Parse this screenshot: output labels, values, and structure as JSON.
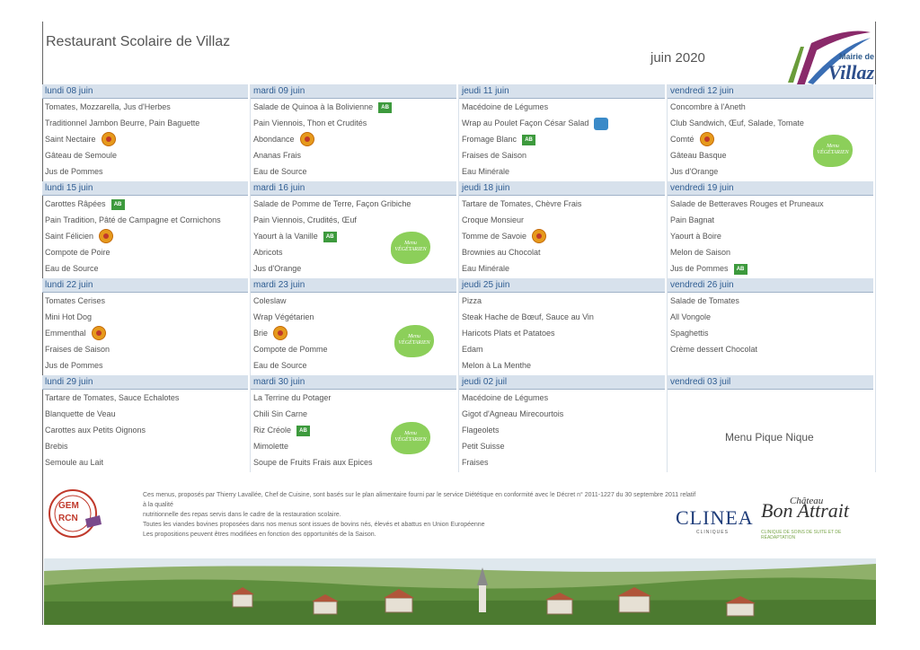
{
  "header": {
    "title": "Restaurant Scolaire de Villaz",
    "month": "juin 2020",
    "logo_line1": "Mairie de",
    "logo_line2": "Villaz"
  },
  "weeks": [
    {
      "days": [
        {
          "label": "lundi 08 juin",
          "items": [
            {
              "t": "Tomates, Mozzarella, Jus d'Herbes"
            },
            {
              "t": "Traditionnel Jambon Beurre, Pain Baguette"
            },
            {
              "t": "Saint Nectaire",
              "b": "aop"
            },
            {
              "t": "Gâteau de Semoule"
            },
            {
              "t": "Jus de Pommes"
            }
          ]
        },
        {
          "label": "mardi 09 juin",
          "items": [
            {
              "t": "Salade de Quinoa à la Bolivienne",
              "b": "ab"
            },
            {
              "t": "Pain Viennois, Thon et Crudités"
            },
            {
              "t": "Abondance",
              "b": "aop"
            },
            {
              "t": "Ananas Frais"
            },
            {
              "t": "Eau de Source"
            }
          ]
        },
        {
          "label": "jeudi 11 juin",
          "items": [
            {
              "t": "Macédoine de Légumes"
            },
            {
              "t": "Wrap au Poulet Façon César Salad",
              "b": "bleu"
            },
            {
              "t": "Fromage Blanc",
              "b": "ab"
            },
            {
              "t": "Fraises de Saison"
            },
            {
              "t": "Eau Minérale"
            }
          ]
        },
        {
          "label": "vendredi 12 juin",
          "items": [
            {
              "t": "Concombre à l'Aneth"
            },
            {
              "t": "Club Sandwich, Œuf, Salade, Tomate"
            },
            {
              "t": "Comté",
              "b": "aop"
            },
            {
              "t": "Gâteau Basque"
            },
            {
              "t": "Jus d'Orange"
            }
          ]
        }
      ]
    },
    {
      "days": [
        {
          "label": "lundi 15 juin",
          "items": [
            {
              "t": "Carottes Râpées",
              "b": "ab"
            },
            {
              "t": "Pain Tradition, Pâté de Campagne et Cornichons"
            },
            {
              "t": "Saint Félicien",
              "b": "aop"
            },
            {
              "t": "Compote de Poire"
            },
            {
              "t": "Eau de Source"
            }
          ]
        },
        {
          "label": "mardi 16 juin",
          "items": [
            {
              "t": "Salade de Pomme de Terre, Façon Gribiche"
            },
            {
              "t": "Pain Viennois, Crudités, Œuf"
            },
            {
              "t": "Yaourt à la Vanille",
              "b": "ab"
            },
            {
              "t": "Abricots"
            },
            {
              "t": "Jus d'Orange"
            }
          ]
        },
        {
          "label": "jeudi 18 juin",
          "items": [
            {
              "t": "Tartare de Tomates, Chèvre Frais"
            },
            {
              "t": "Croque Monsieur"
            },
            {
              "t": "Tomme de Savoie",
              "b": "aop"
            },
            {
              "t": "Brownies au Chocolat"
            },
            {
              "t": "Eau Minérale"
            }
          ]
        },
        {
          "label": "vendredi 19 juin",
          "items": [
            {
              "t": "Salade de Betteraves Rouges et Pruneaux"
            },
            {
              "t": "Pain Bagnat"
            },
            {
              "t": "Yaourt à Boire"
            },
            {
              "t": "Melon de Saison"
            },
            {
              "t": "Jus de Pommes",
              "b": "ab"
            }
          ]
        }
      ]
    },
    {
      "days": [
        {
          "label": "lundi 22 juin",
          "items": [
            {
              "t": "Tomates Cerises"
            },
            {
              "t": "Mini Hot Dog"
            },
            {
              "t": "Emmenthal",
              "b": "aop"
            },
            {
              "t": "Fraises de Saison"
            },
            {
              "t": "Jus de Pommes"
            }
          ]
        },
        {
          "label": "mardi 23 juin",
          "items": [
            {
              "t": "Coleslaw"
            },
            {
              "t": "Wrap Végétarien"
            },
            {
              "t": "Brie",
              "b": "aop"
            },
            {
              "t": "Compote de Pomme"
            },
            {
              "t": "Eau de Source"
            }
          ]
        },
        {
          "label": "jeudi 25 juin",
          "items": [
            {
              "t": "Pizza"
            },
            {
              "t": "Steak Hache de Bœuf, Sauce au Vin"
            },
            {
              "t": "Haricots Plats et Patatoes"
            },
            {
              "t": "Edam"
            },
            {
              "t": "Melon à La Menthe"
            }
          ]
        },
        {
          "label": "vendredi 26 juin",
          "items": [
            {
              "t": "Salade de Tomates"
            },
            {
              "t": "All Vongole"
            },
            {
              "t": "Spaghettis"
            },
            {
              "t": "Crème dessert Chocolat"
            },
            {
              "t": ""
            }
          ]
        }
      ]
    },
    {
      "days": [
        {
          "label": "lundi 29 juin",
          "items": [
            {
              "t": "Tartare de Tomates, Sauce Echalotes"
            },
            {
              "t": "Blanquette de Veau"
            },
            {
              "t": "Carottes aux Petits Oignons"
            },
            {
              "t": "Brebis"
            },
            {
              "t": "Semoule au Lait"
            }
          ]
        },
        {
          "label": "mardi 30 juin",
          "items": [
            {
              "t": "La Terrine du Potager"
            },
            {
              "t": "Chili Sin Carne"
            },
            {
              "t": "Riz Créole",
              "b": "ab"
            },
            {
              "t": "Mimolette"
            },
            {
              "t": "Soupe de Fruits Frais aux Epices"
            }
          ]
        },
        {
          "label": "jeudi 02 juil",
          "items": [
            {
              "t": "Macédoine de Légumes"
            },
            {
              "t": "Gigot d'Agneau Mirecourtois"
            },
            {
              "t": "Flageolets"
            },
            {
              "t": "Petit Suisse"
            },
            {
              "t": "Fraises"
            }
          ]
        },
        {
          "label": "vendredi 03 juil",
          "items": []
        }
      ]
    }
  ],
  "badges": {
    "ab": "AB",
    "veg_line1": "Menu",
    "veg_line2": "VÉGÉTARIEN"
  },
  "pique_nique": "Menu Pique Nique",
  "footer": {
    "line1": "Ces menus, proposés par Thierry Lavallée, Chef de Cuisine, sont basés sur le plan alimentaire fourni par le service Diététique en conformité avec le Décret n° 2011-1227 du 30 septembre 2011 relatif à la qualité",
    "line2": "nutritionnelle des repas servis dans le cadre de la restauration scolaire.",
    "line3": "Toutes les viandes bovines proposées dans nos menus sont issues de bovins nés, élevés et abattus en Union Européenne",
    "line4": "Les propositions peuvent êtres modifiées en fonction des opportunités de la Saison."
  },
  "sponsors": {
    "gem_top": "GEM",
    "gem_bottom": "RCN",
    "clinea": "CLINEA",
    "clinea_sub": "CLINIQUES",
    "chateau": "Bon Attrait",
    "chateau_small": "Château",
    "chateau_sub": "CLINIQUE DE SOINS DE SUITE ET DE RÉADAPTATION"
  },
  "colors": {
    "header_bg": "#d7e1ec",
    "header_text": "#2f5d92",
    "aop": "#e69a1c",
    "ab": "#3d9a3d",
    "veg": "#8ccf5a"
  }
}
